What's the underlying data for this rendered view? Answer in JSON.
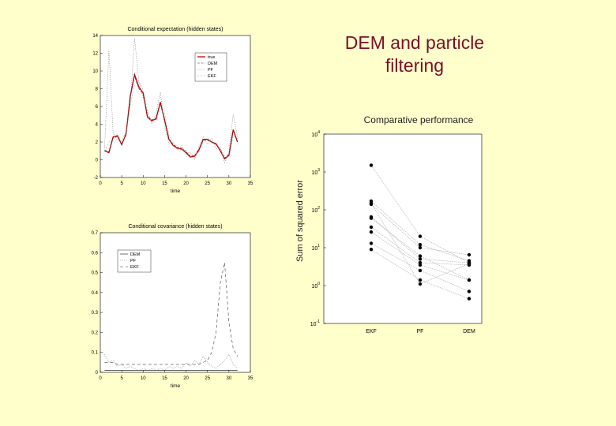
{
  "slide": {
    "title": "DEM and particle filtering",
    "colors": {
      "background": "#ffffcc",
      "title": "#7a1028",
      "true_line": "#cc0000"
    }
  },
  "chart_data": [
    {
      "type": "line",
      "title": "Conditional expectation (hidden states)",
      "xlabel": "time",
      "ylabel": "",
      "xlim": [
        0,
        35
      ],
      "ylim": [
        -2,
        14
      ],
      "xticks": [
        "0",
        "5",
        "10",
        "15",
        "20",
        "25",
        "30",
        "35"
      ],
      "yticks": [
        "-2",
        "0",
        "2",
        "4",
        "6",
        "8",
        "10",
        "12",
        "14"
      ],
      "legend": [
        "true",
        "DEM",
        "PF",
        "EKF"
      ],
      "legend_position": "top-right",
      "x": [
        1,
        2,
        3,
        4,
        5,
        6,
        7,
        8,
        9,
        10,
        11,
        12,
        13,
        14,
        15,
        16,
        17,
        18,
        19,
        20,
        21,
        22,
        23,
        24,
        25,
        26,
        27,
        28,
        29,
        30,
        31,
        32
      ],
      "series": [
        {
          "name": "true",
          "values": [
            1.0,
            0.8,
            2.6,
            2.7,
            1.7,
            2.9,
            7.2,
            9.6,
            8.2,
            7.5,
            4.8,
            4.4,
            4.6,
            6.5,
            4.5,
            2.3,
            1.6,
            1.3,
            1.2,
            0.8,
            0.3,
            0.4,
            1.1,
            2.3,
            2.3,
            2.0,
            1.8,
            1.0,
            0.1,
            0.5,
            3.4,
            2.0
          ]
        },
        {
          "name": "DEM",
          "values": [
            1.1,
            0.9,
            2.5,
            2.6,
            1.8,
            2.8,
            7.0,
            9.4,
            8.0,
            7.4,
            4.9,
            4.5,
            4.7,
            6.3,
            4.4,
            2.4,
            1.7,
            1.4,
            1.3,
            0.9,
            0.4,
            0.5,
            1.2,
            2.2,
            2.2,
            2.0,
            1.7,
            1.1,
            0.2,
            0.6,
            3.3,
            2.1
          ]
        },
        {
          "name": "PF",
          "values": [
            1.3,
            12.3,
            3.0,
            2.2,
            2.1,
            3.2,
            6.4,
            13.7,
            8.8,
            7.0,
            5.4,
            4.1,
            5.2,
            7.6,
            3.9,
            1.8,
            2.0,
            1.1,
            1.6,
            0.6,
            0.8,
            0.1,
            1.5,
            2.6,
            1.8,
            2.4,
            1.2,
            1.4,
            -0.3,
            1.0,
            5.1,
            2.6
          ]
        },
        {
          "name": "EKF",
          "values": [
            1.0,
            2.0,
            2.3,
            2.9,
            2.0,
            2.6,
            6.2,
            8.4,
            8.9,
            7.8,
            5.5,
            4.2,
            4.3,
            5.8,
            5.2,
            2.8,
            1.9,
            1.5,
            1.0,
            1.1,
            0.5,
            0.6,
            0.9,
            2.0,
            2.5,
            1.8,
            1.9,
            1.3,
            0.4,
            0.3,
            2.7,
            2.4
          ]
        }
      ]
    },
    {
      "type": "line",
      "title": "Conditional covariance (hidden states)",
      "xlabel": "time",
      "ylabel": "",
      "xlim": [
        0,
        35
      ],
      "ylim": [
        0,
        0.7
      ],
      "xticks": [
        "0",
        "5",
        "10",
        "15",
        "20",
        "25",
        "30",
        "35"
      ],
      "yticks": [
        "0",
        "0.1",
        "0.2",
        "0.3",
        "0.4",
        "0.5",
        "0.6",
        "0.7"
      ],
      "legend": [
        "DEM",
        "PF",
        "EKF"
      ],
      "legend_position": "top-left",
      "x": [
        1,
        2,
        3,
        4,
        5,
        6,
        7,
        8,
        9,
        10,
        11,
        12,
        13,
        14,
        15,
        16,
        17,
        18,
        19,
        20,
        21,
        22,
        23,
        24,
        25,
        26,
        27,
        28,
        29,
        30,
        31,
        32
      ],
      "series": [
        {
          "name": "DEM",
          "values": [
            0.01,
            0.01,
            0.01,
            0.01,
            0.01,
            0.01,
            0.01,
            0.01,
            0.01,
            0.01,
            0.01,
            0.01,
            0.01,
            0.01,
            0.01,
            0.01,
            0.01,
            0.01,
            0.01,
            0.01,
            0.01,
            0.01,
            0.01,
            0.01,
            0.01,
            0.01,
            0.01,
            0.01,
            0.01,
            0.01,
            0.01,
            0.01
          ]
        },
        {
          "name": "PF",
          "values": [
            0.09,
            0.05,
            0.06,
            0.03,
            0.04,
            0.02,
            0.03,
            0.02,
            0.01,
            0.02,
            0.01,
            0.02,
            0.01,
            0.02,
            0.01,
            0.03,
            0.02,
            0.03,
            0.02,
            0.05,
            0.03,
            0.06,
            0.04,
            0.08,
            0.05,
            0.03,
            0.02,
            0.04,
            0.06,
            0.09,
            0.04,
            0.02
          ]
        },
        {
          "name": "EKF",
          "values": [
            0.05,
            0.05,
            0.05,
            0.04,
            0.04,
            0.04,
            0.04,
            0.04,
            0.04,
            0.04,
            0.04,
            0.04,
            0.04,
            0.04,
            0.04,
            0.04,
            0.04,
            0.04,
            0.04,
            0.04,
            0.04,
            0.04,
            0.04,
            0.05,
            0.06,
            0.1,
            0.2,
            0.45,
            0.55,
            0.25,
            0.12,
            0.08
          ]
        }
      ]
    },
    {
      "type": "scatter",
      "title": "Comparative performance",
      "xlabel": "",
      "ylabel": "Sum of squared error",
      "yscale": "log",
      "ylim": [
        0.1,
        10000
      ],
      "yticks": [
        "10^-1",
        "10^0",
        "10^1",
        "10^2",
        "10^3",
        "10^4"
      ],
      "categories": [
        "EKF",
        "PF",
        "DEM"
      ],
      "series": [
        {
          "name": "",
          "values": [
            1500,
            20,
            4
          ]
        },
        {
          "name": "",
          "values": [
            170,
            12,
            4.5
          ]
        },
        {
          "name": "",
          "values": [
            140,
            10,
            6.5
          ]
        },
        {
          "name": "",
          "values": [
            65,
            5,
            4
          ]
        },
        {
          "name": "",
          "values": [
            35,
            4,
            3.5
          ]
        },
        {
          "name": "",
          "values": [
            26,
            3.5,
            1.4
          ]
        },
        {
          "name": "",
          "values": [
            13,
            2.5,
            0.7
          ]
        },
        {
          "name": "",
          "values": [
            9,
            1.4,
            0.45
          ]
        },
        {
          "name": "",
          "values": [
            150,
            1.1,
            3.8
          ]
        },
        {
          "name": "",
          "values": [
            60,
            6,
            1.4
          ]
        }
      ]
    }
  ]
}
